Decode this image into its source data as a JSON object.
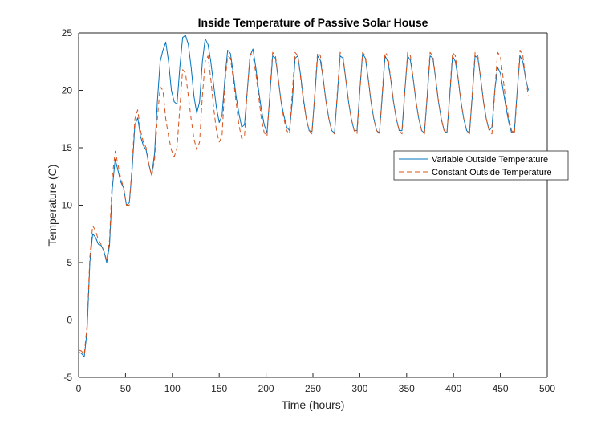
{
  "chart_data": {
    "type": "line",
    "title": "Inside Temperature of Passive Solar House",
    "xlabel": "Time (hours)",
    "ylabel": "Temperature (C)",
    "xlim": [
      0,
      500
    ],
    "ylim": [
      -5,
      25
    ],
    "xticks": [
      0,
      50,
      100,
      150,
      200,
      250,
      300,
      350,
      400,
      450,
      500
    ],
    "yticks": [
      -5,
      0,
      5,
      10,
      15,
      20,
      25
    ],
    "grid": false,
    "legend_position": "right",
    "series": [
      {
        "name": "Variable Outside Temperature",
        "color": "#0072BD",
        "line_style": "solid",
        "points": [
          [
            0,
            -2.8
          ],
          [
            3,
            -2.9
          ],
          [
            6,
            -3.2
          ],
          [
            9,
            -1.0
          ],
          [
            12,
            5.0
          ],
          [
            15,
            7.5
          ],
          [
            18,
            7.2
          ],
          [
            21,
            6.6
          ],
          [
            24,
            6.5
          ],
          [
            27,
            6.0
          ],
          [
            30,
            5.0
          ],
          [
            33,
            6.5
          ],
          [
            36,
            11.5
          ],
          [
            39,
            14.0
          ],
          [
            42,
            13.0
          ],
          [
            45,
            12.0
          ],
          [
            48,
            11.5
          ],
          [
            51,
            10.0
          ],
          [
            54,
            10.2
          ],
          [
            57,
            13.0
          ],
          [
            60,
            17.0
          ],
          [
            63,
            17.6
          ],
          [
            66,
            16.0
          ],
          [
            69,
            15.2
          ],
          [
            72,
            14.8
          ],
          [
            75,
            13.5
          ],
          [
            78,
            12.6
          ],
          [
            81,
            14.5
          ],
          [
            84,
            19.0
          ],
          [
            87,
            22.5
          ],
          [
            90,
            23.5
          ],
          [
            93,
            24.2
          ],
          [
            96,
            22.5
          ],
          [
            99,
            20.0
          ],
          [
            102,
            19.0
          ],
          [
            105,
            18.8
          ],
          [
            108,
            22.0
          ],
          [
            111,
            24.6
          ],
          [
            114,
            24.8
          ],
          [
            117,
            24.0
          ],
          [
            120,
            22.0
          ],
          [
            123,
            19.5
          ],
          [
            126,
            18.0
          ],
          [
            129,
            19.0
          ],
          [
            132,
            22.5
          ],
          [
            135,
            24.5
          ],
          [
            138,
            24.0
          ],
          [
            141,
            22.5
          ],
          [
            144,
            20.5
          ],
          [
            147,
            18.5
          ],
          [
            150,
            17.2
          ],
          [
            153,
            17.8
          ],
          [
            156,
            21.0
          ],
          [
            159,
            23.5
          ],
          [
            162,
            23.2
          ],
          [
            165,
            21.5
          ],
          [
            168,
            19.5
          ],
          [
            171,
            18.0
          ],
          [
            174,
            16.8
          ],
          [
            177,
            17.0
          ],
          [
            180,
            20.0
          ],
          [
            183,
            23.0
          ],
          [
            186,
            23.6
          ],
          [
            189,
            22.0
          ],
          [
            192,
            20.0
          ],
          [
            195,
            18.3
          ],
          [
            198,
            17.0
          ],
          [
            201,
            16.3
          ],
          [
            204,
            19.5
          ],
          [
            207,
            23.0
          ],
          [
            210,
            22.8
          ],
          [
            213,
            21.0
          ],
          [
            216,
            19.0
          ],
          [
            219,
            17.8
          ],
          [
            222,
            16.8
          ],
          [
            225,
            16.5
          ],
          [
            228,
            19.0
          ],
          [
            231,
            22.8
          ],
          [
            234,
            23.0
          ],
          [
            237,
            21.2
          ],
          [
            240,
            19.2
          ],
          [
            243,
            17.5
          ],
          [
            246,
            16.5
          ],
          [
            249,
            16.4
          ],
          [
            252,
            19.5
          ],
          [
            255,
            23.0
          ],
          [
            258,
            22.6
          ],
          [
            261,
            21.0
          ],
          [
            264,
            19.0
          ],
          [
            267,
            17.5
          ],
          [
            270,
            16.5
          ],
          [
            273,
            16.3
          ],
          [
            276,
            19.5
          ],
          [
            279,
            23.0
          ],
          [
            282,
            22.8
          ],
          [
            285,
            21.0
          ],
          [
            288,
            19.0
          ],
          [
            291,
            17.5
          ],
          [
            294,
            16.5
          ],
          [
            297,
            16.5
          ],
          [
            300,
            20.0
          ],
          [
            303,
            23.2
          ],
          [
            306,
            22.8
          ],
          [
            309,
            21.0
          ],
          [
            312,
            19.0
          ],
          [
            315,
            17.5
          ],
          [
            318,
            16.5
          ],
          [
            321,
            16.3
          ],
          [
            324,
            19.5
          ],
          [
            327,
            23.0
          ],
          [
            330,
            22.5
          ],
          [
            333,
            21.0
          ],
          [
            336,
            19.0
          ],
          [
            339,
            17.5
          ],
          [
            342,
            16.5
          ],
          [
            345,
            16.5
          ],
          [
            348,
            20.0
          ],
          [
            351,
            23.0
          ],
          [
            354,
            22.6
          ],
          [
            357,
            21.0
          ],
          [
            360,
            19.0
          ],
          [
            363,
            17.5
          ],
          [
            366,
            16.5
          ],
          [
            369,
            16.3
          ],
          [
            372,
            19.5
          ],
          [
            375,
            23.0
          ],
          [
            378,
            22.8
          ],
          [
            381,
            21.0
          ],
          [
            384,
            19.0
          ],
          [
            387,
            17.5
          ],
          [
            390,
            16.5
          ],
          [
            393,
            16.3
          ],
          [
            396,
            19.5
          ],
          [
            399,
            23.0
          ],
          [
            402,
            22.5
          ],
          [
            405,
            21.0
          ],
          [
            408,
            19.0
          ],
          [
            411,
            17.5
          ],
          [
            414,
            16.5
          ],
          [
            417,
            16.3
          ],
          [
            420,
            19.5
          ],
          [
            423,
            23.0
          ],
          [
            426,
            22.8
          ],
          [
            429,
            21.0
          ],
          [
            432,
            19.0
          ],
          [
            435,
            17.5
          ],
          [
            438,
            16.5
          ],
          [
            441,
            16.8
          ],
          [
            444,
            20.0
          ],
          [
            447,
            22.0
          ],
          [
            450,
            21.5
          ],
          [
            453,
            20.0
          ],
          [
            456,
            18.5
          ],
          [
            459,
            17.2
          ],
          [
            462,
            16.3
          ],
          [
            465,
            16.5
          ],
          [
            468,
            20.0
          ],
          [
            471,
            23.0
          ],
          [
            474,
            22.5
          ],
          [
            477,
            21.0
          ],
          [
            480,
            20.0
          ]
        ]
      },
      {
        "name": "Constant Outside Temperature",
        "color": "#D95319",
        "line_style": "dashed",
        "points": [
          [
            0,
            -2.6
          ],
          [
            3,
            -2.7
          ],
          [
            6,
            -3.0
          ],
          [
            9,
            -0.5
          ],
          [
            12,
            5.5
          ],
          [
            15,
            8.2
          ],
          [
            18,
            7.8
          ],
          [
            21,
            7.0
          ],
          [
            24,
            6.6
          ],
          [
            27,
            6.0
          ],
          [
            30,
            5.2
          ],
          [
            33,
            7.0
          ],
          [
            36,
            12.5
          ],
          [
            39,
            14.7
          ],
          [
            42,
            13.5
          ],
          [
            45,
            12.3
          ],
          [
            48,
            11.5
          ],
          [
            51,
            10.0
          ],
          [
            54,
            10.0
          ],
          [
            57,
            13.5
          ],
          [
            60,
            17.5
          ],
          [
            63,
            18.3
          ],
          [
            66,
            16.5
          ],
          [
            69,
            15.5
          ],
          [
            72,
            15.0
          ],
          [
            75,
            13.5
          ],
          [
            78,
            12.5
          ],
          [
            81,
            14.0
          ],
          [
            84,
            17.5
          ],
          [
            87,
            20.3
          ],
          [
            90,
            20.0
          ],
          [
            93,
            17.5
          ],
          [
            96,
            16.0
          ],
          [
            99,
            14.8
          ],
          [
            102,
            14.2
          ],
          [
            105,
            15.0
          ],
          [
            108,
            18.5
          ],
          [
            111,
            21.8
          ],
          [
            114,
            21.5
          ],
          [
            117,
            19.5
          ],
          [
            120,
            17.5
          ],
          [
            123,
            15.8
          ],
          [
            126,
            14.8
          ],
          [
            129,
            15.5
          ],
          [
            132,
            19.5
          ],
          [
            135,
            22.5
          ],
          [
            138,
            23.0
          ],
          [
            141,
            21.0
          ],
          [
            144,
            18.5
          ],
          [
            147,
            16.5
          ],
          [
            150,
            15.5
          ],
          [
            153,
            16.0
          ],
          [
            156,
            20.5
          ],
          [
            159,
            23.0
          ],
          [
            162,
            22.8
          ],
          [
            165,
            21.0
          ],
          [
            168,
            19.0
          ],
          [
            171,
            17.0
          ],
          [
            174,
            15.8
          ],
          [
            177,
            16.0
          ],
          [
            180,
            20.0
          ],
          [
            183,
            23.2
          ],
          [
            186,
            23.0
          ],
          [
            189,
            21.5
          ],
          [
            192,
            19.5
          ],
          [
            195,
            17.5
          ],
          [
            198,
            16.3
          ],
          [
            201,
            16.0
          ],
          [
            204,
            19.8
          ],
          [
            207,
            23.3
          ],
          [
            210,
            23.0
          ],
          [
            213,
            21.0
          ],
          [
            216,
            19.0
          ],
          [
            219,
            17.5
          ],
          [
            222,
            16.5
          ],
          [
            225,
            16.2
          ],
          [
            228,
            19.8
          ],
          [
            231,
            23.3
          ],
          [
            234,
            23.0
          ],
          [
            237,
            21.0
          ],
          [
            240,
            19.0
          ],
          [
            243,
            17.5
          ],
          [
            246,
            16.5
          ],
          [
            249,
            16.2
          ],
          [
            252,
            19.8
          ],
          [
            255,
            23.3
          ],
          [
            258,
            23.0
          ],
          [
            261,
            21.0
          ],
          [
            264,
            19.0
          ],
          [
            267,
            17.5
          ],
          [
            270,
            16.5
          ],
          [
            273,
            16.2
          ],
          [
            276,
            19.8
          ],
          [
            279,
            23.3
          ],
          [
            282,
            23.0
          ],
          [
            285,
            21.0
          ],
          [
            288,
            19.0
          ],
          [
            291,
            17.5
          ],
          [
            294,
            16.5
          ],
          [
            297,
            16.2
          ],
          [
            300,
            19.8
          ],
          [
            303,
            23.3
          ],
          [
            306,
            23.0
          ],
          [
            309,
            21.0
          ],
          [
            312,
            19.0
          ],
          [
            315,
            17.5
          ],
          [
            318,
            16.5
          ],
          [
            321,
            16.2
          ],
          [
            324,
            19.8
          ],
          [
            327,
            23.3
          ],
          [
            330,
            23.0
          ],
          [
            333,
            21.0
          ],
          [
            336,
            19.0
          ],
          [
            339,
            17.5
          ],
          [
            342,
            16.5
          ],
          [
            345,
            16.2
          ],
          [
            348,
            19.8
          ],
          [
            351,
            23.3
          ],
          [
            354,
            23.0
          ],
          [
            357,
            21.0
          ],
          [
            360,
            19.0
          ],
          [
            363,
            17.5
          ],
          [
            366,
            16.5
          ],
          [
            369,
            16.2
          ],
          [
            372,
            19.8
          ],
          [
            375,
            23.3
          ],
          [
            378,
            23.0
          ],
          [
            381,
            21.0
          ],
          [
            384,
            19.0
          ],
          [
            387,
            17.5
          ],
          [
            390,
            16.5
          ],
          [
            393,
            16.2
          ],
          [
            396,
            19.8
          ],
          [
            399,
            23.3
          ],
          [
            402,
            23.0
          ],
          [
            405,
            21.0
          ],
          [
            408,
            19.0
          ],
          [
            411,
            17.5
          ],
          [
            414,
            16.5
          ],
          [
            417,
            16.2
          ],
          [
            420,
            19.8
          ],
          [
            423,
            23.3
          ],
          [
            426,
            23.0
          ],
          [
            429,
            21.0
          ],
          [
            432,
            19.0
          ],
          [
            435,
            17.5
          ],
          [
            438,
            16.5
          ],
          [
            441,
            16.2
          ],
          [
            444,
            19.8
          ],
          [
            447,
            23.3
          ],
          [
            450,
            23.0
          ],
          [
            453,
            21.0
          ],
          [
            456,
            19.0
          ],
          [
            459,
            17.5
          ],
          [
            462,
            16.5
          ],
          [
            465,
            16.2
          ],
          [
            468,
            19.8
          ],
          [
            471,
            23.5
          ],
          [
            474,
            23.0
          ],
          [
            477,
            21.0
          ],
          [
            480,
            19.5
          ]
        ]
      }
    ]
  }
}
